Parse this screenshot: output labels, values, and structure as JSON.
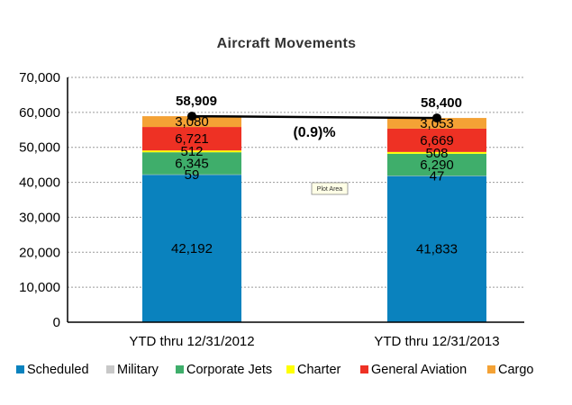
{
  "chart_data": {
    "type": "bar",
    "stacked": true,
    "title": "Aircraft Movements",
    "categories": [
      "YTD thru 12/31/2012",
      "YTD thru 12/31/2013"
    ],
    "series": [
      {
        "name": "Scheduled",
        "color": "#0A82BE",
        "values": [
          42192,
          41833
        ],
        "labels": [
          "42,192",
          "41,833"
        ]
      },
      {
        "name": "Military",
        "color": "#C8C8C8",
        "values": [
          59,
          47
        ],
        "labels": [
          "59",
          "47"
        ]
      },
      {
        "name": "Corporate Jets",
        "color": "#3FAE6B",
        "values": [
          6345,
          6290
        ],
        "labels": [
          "6,345",
          "6,290"
        ]
      },
      {
        "name": "Charter",
        "color": "#FFFF00",
        "values": [
          512,
          508
        ],
        "labels": [
          "512",
          "508"
        ]
      },
      {
        "name": "General Aviation",
        "color": "#EE3124",
        "values": [
          6721,
          6669
        ],
        "labels": [
          "6,721",
          "6,669"
        ]
      },
      {
        "name": "Cargo",
        "color": "#F4A235",
        "values": [
          3080,
          3053
        ],
        "labels": [
          "3,080",
          "3,053"
        ]
      }
    ],
    "totals": [
      58909,
      58400
    ],
    "total_labels": [
      "58,909",
      "58,400"
    ],
    "change_label": "(0.9)%",
    "ylim": [
      0,
      70000
    ],
    "yticks": [
      "0",
      "10,000",
      "20,000",
      "30,000",
      "40,000",
      "50,000",
      "60,000",
      "70,000"
    ],
    "grid": true,
    "legend_position": "bottom",
    "tooltip": "Plot Area"
  }
}
